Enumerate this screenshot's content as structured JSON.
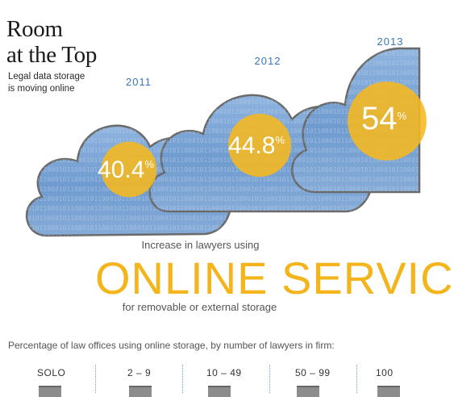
{
  "header": {
    "title_line1": "Room",
    "title_line2": "at the Top",
    "subtitle_line1": "Legal data storage",
    "subtitle_line2": "is moving online"
  },
  "chart_data": {
    "type": "bar",
    "categories": [
      "2011",
      "2012",
      "2013"
    ],
    "values": [
      40.4,
      44.8,
      54
    ],
    "value_labels": [
      "40.4",
      "44.8",
      "54"
    ],
    "unit": "%",
    "colors": {
      "cloud_fill": "#7fa7d6",
      "cloud_stroke": "#6a6a6a",
      "circle_fill": "#f6b81e",
      "label": "#ffffff",
      "year": "#3a78b8"
    }
  },
  "section": {
    "line1": "Increase in lawyers using",
    "headline": "ONLINE SERVIC",
    "line3": "for removable or external storage",
    "caption": "Percentage of law offices using online storage, by number of lawyers in firm:"
  },
  "firm_sizes": [
    "SOLO",
    "2 – 9",
    "10 – 49",
    "50 – 99",
    "100"
  ],
  "colors": {
    "accent": "#f4b41c",
    "divider": "#7a9bbf"
  }
}
